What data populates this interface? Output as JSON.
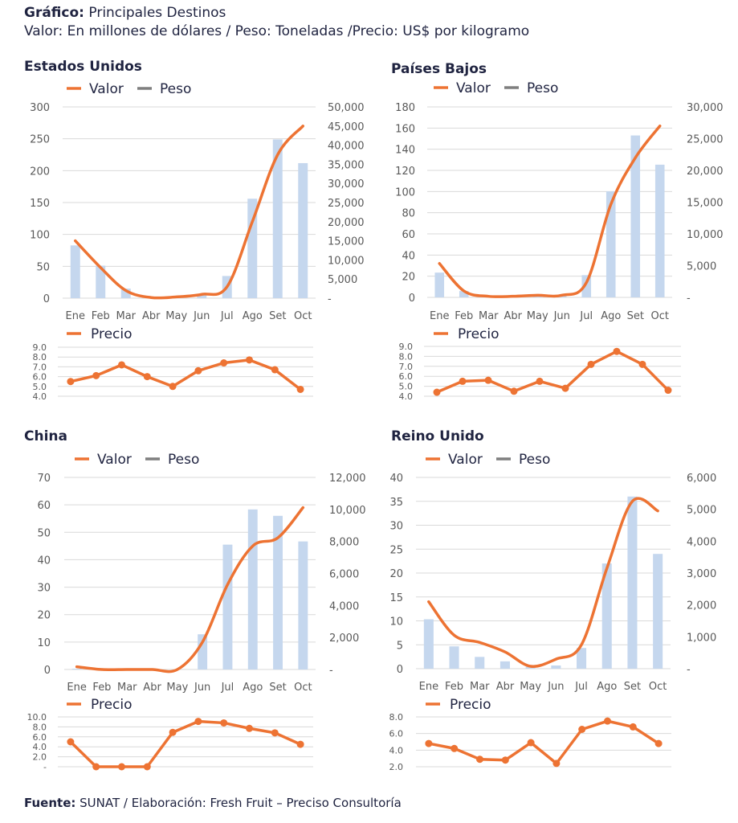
{
  "header": {
    "title_label": "Gráfico:",
    "title_text": " Principales Destinos",
    "subtitle": "Valor: En millones de dólares / Peso: Toneladas /Precio: US$ por kilogramo"
  },
  "footer": {
    "label": "Fuente:",
    "text": " SUNAT / Elaboración: Fresh Fruit – Preciso Consultoría"
  },
  "colors": {
    "valor": "#ed7333",
    "peso_bar": "#c5d7ee",
    "peso_legend": "#7f7f7f",
    "precio": "#ed7333",
    "title": "#1f2340"
  },
  "chart_data": [
    {
      "id": "eeuu",
      "title": "Estados Unidos",
      "type": "bar+line",
      "categories": [
        "Ene",
        "Feb",
        "Mar",
        "Abr",
        "May",
        "Jun",
        "Jul",
        "Ago",
        "Set",
        "Oct"
      ],
      "legend": [
        "Valor",
        "Peso"
      ],
      "legend_position": "top-left",
      "left_axis": {
        "label": "Valor",
        "ylim": [
          0,
          300
        ],
        "ticks": [
          "0",
          "50",
          "100",
          "150",
          "200",
          "250",
          "300"
        ]
      },
      "right_axis": {
        "label": "Peso",
        "ylim": [
          0,
          50000
        ],
        "ticks": [
          "-",
          "5,000",
          "10,000",
          "15,000",
          "20,000",
          "25,000",
          "30,000",
          "35,000",
          "40,000",
          "45,000",
          "50,000"
        ]
      },
      "series": [
        {
          "name": "Valor",
          "type": "line",
          "axis": "left",
          "values": [
            90,
            48,
            12,
            1,
            2,
            6,
            18,
            120,
            225,
            270
          ]
        },
        {
          "name": "Peso",
          "type": "bar",
          "axis": "right",
          "values": [
            13800,
            8500,
            2500,
            300,
            400,
            1000,
            5800,
            26000,
            41500,
            35300
          ]
        }
      ],
      "precio": {
        "legend": "Precio",
        "ylim": [
          4.0,
          9.0
        ],
        "ticks": [
          "4.0",
          "5.0",
          "6.0",
          "7.0",
          "8.0",
          "9.0"
        ],
        "values": [
          5.5,
          6.1,
          7.2,
          6.0,
          5.0,
          6.6,
          7.4,
          7.7,
          6.7,
          4.7
        ]
      }
    },
    {
      "id": "paises-bajos",
      "title": "Países Bajos",
      "type": "bar+line",
      "categories": [
        "Ene",
        "Feb",
        "Mar",
        "Abr",
        "May",
        "Jun",
        "Jul",
        "Ago",
        "Set",
        "Oct"
      ],
      "legend": [
        "Valor",
        "Peso"
      ],
      "legend_position": "top-left",
      "left_axis": {
        "label": "Valor",
        "ylim": [
          0,
          180
        ],
        "ticks": [
          "0",
          "20",
          "40",
          "60",
          "80",
          "100",
          "120",
          "140",
          "160",
          "180"
        ]
      },
      "right_axis": {
        "label": "Peso",
        "ylim": [
          0,
          30000
        ],
        "ticks": [
          "-",
          "5,000",
          "10,000",
          "15,000",
          "20,000",
          "25,000",
          "30,000"
        ]
      },
      "series": [
        {
          "name": "Valor",
          "type": "line",
          "axis": "left",
          "values": [
            32,
            6,
            1,
            1,
            2,
            2,
            14,
            88,
            132,
            162
          ]
        },
        {
          "name": "Peso",
          "type": "bar",
          "axis": "right",
          "values": [
            3900,
            1000,
            200,
            100,
            200,
            300,
            3500,
            16700,
            25500,
            20900
          ]
        }
      ],
      "precio": {
        "legend": "Precio",
        "ylim": [
          4.0,
          9.0
        ],
        "ticks": [
          "4.0",
          "5.0",
          "6.0",
          "7.0",
          "8.0",
          "9.0"
        ],
        "values": [
          4.4,
          5.5,
          5.6,
          4.5,
          5.5,
          4.8,
          7.2,
          8.5,
          7.2,
          4.6
        ]
      }
    },
    {
      "id": "china",
      "title": "China",
      "type": "bar+line",
      "categories": [
        "Ene",
        "Feb",
        "Mar",
        "Abr",
        "May",
        "Jun",
        "Jul",
        "Ago",
        "Set",
        "Oct"
      ],
      "legend": [
        "Valor",
        "Peso"
      ],
      "legend_position": "top-left",
      "left_axis": {
        "label": "Valor",
        "ylim": [
          0,
          70
        ],
        "ticks": [
          "0",
          "10",
          "20",
          "30",
          "40",
          "50",
          "60",
          "70"
        ]
      },
      "right_axis": {
        "label": "Peso",
        "ylim": [
          0,
          12000
        ],
        "ticks": [
          "-",
          "2,000",
          "4,000",
          "6,000",
          "8,000",
          "10,000",
          "12,000"
        ]
      },
      "series": [
        {
          "name": "Valor",
          "type": "line",
          "axis": "left",
          "values": [
            1,
            0,
            0,
            0,
            0,
            10,
            31,
            45,
            48,
            59
          ]
        },
        {
          "name": "Peso",
          "type": "bar",
          "axis": "right",
          "values": [
            50,
            0,
            0,
            0,
            0,
            2200,
            7800,
            10000,
            9600,
            8000
          ]
        }
      ],
      "precio": {
        "legend": "Precio",
        "ylim": [
          0,
          10.0
        ],
        "ticks": [
          "-",
          "2.0",
          "4.0",
          "6.0",
          "8.0",
          "10.0"
        ],
        "values": [
          5.0,
          0,
          0,
          0,
          6.9,
          9.1,
          8.8,
          7.7,
          6.8,
          4.5
        ]
      }
    },
    {
      "id": "reino-unido",
      "title": "Reino Unido",
      "type": "bar+line",
      "categories": [
        "Ene",
        "Feb",
        "Mar",
        "Abr",
        "May",
        "Jun",
        "Jul",
        "Ago",
        "Set",
        "Oct"
      ],
      "legend": [
        "Valor",
        "Peso"
      ],
      "legend_position": "top-left",
      "left_axis": {
        "label": "Valor",
        "ylim": [
          0,
          40
        ],
        "ticks": [
          "0",
          "5",
          "10",
          "15",
          "20",
          "25",
          "30",
          "35",
          "40"
        ]
      },
      "right_axis": {
        "label": "Peso",
        "ylim": [
          0,
          6000
        ],
        "ticks": [
          "-",
          "1,000",
          "2,000",
          "3,000",
          "4,000",
          "5,000",
          "6,000"
        ]
      },
      "series": [
        {
          "name": "Valor",
          "type": "line",
          "axis": "left",
          "values": [
            14,
            7,
            5.5,
            3.5,
            0.5,
            2,
            5,
            21,
            35,
            33
          ]
        },
        {
          "name": "Peso",
          "type": "bar",
          "axis": "right",
          "values": [
            1550,
            700,
            370,
            230,
            60,
            100,
            650,
            3300,
            5400,
            3600
          ]
        }
      ],
      "precio": {
        "legend": "Precio",
        "ylim": [
          2.0,
          8.0
        ],
        "ticks": [
          "2.0",
          "4.0",
          "6.0",
          "8.0"
        ],
        "values": [
          4.8,
          4.2,
          2.9,
          2.8,
          4.9,
          2.4,
          6.5,
          7.5,
          6.8,
          4.8
        ]
      }
    }
  ]
}
